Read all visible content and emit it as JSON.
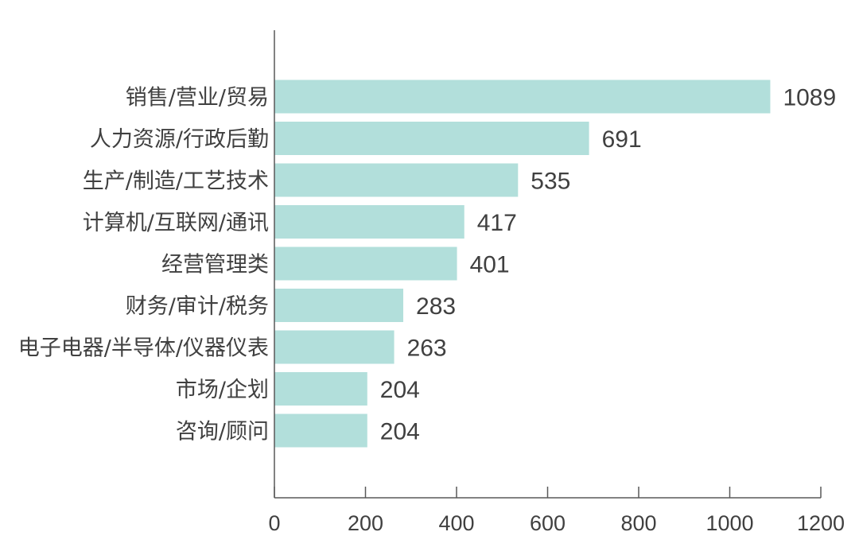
{
  "chart_data": {
    "type": "bar",
    "orientation": "horizontal",
    "categories": [
      "销售/营业/贸易",
      "人力资源/行政后勤",
      "生产/制造/工艺技术",
      "计算机/互联网/通讯",
      "经营管理类",
      "财务/审计/税务",
      "电子电器/半导体/仪器仪表",
      "市场/企划",
      "咨询/顾问"
    ],
    "values": [
      1089,
      691,
      535,
      417,
      401,
      283,
      263,
      204,
      204
    ],
    "xlim": [
      0,
      1200
    ],
    "xticks": [
      0,
      200,
      400,
      600,
      800,
      1000,
      1200
    ],
    "title": "",
    "xlabel": "",
    "ylabel": "",
    "grid": false,
    "bar_color": "#b2dfdb",
    "axis_color": "#595959",
    "text_color": "#404040"
  }
}
